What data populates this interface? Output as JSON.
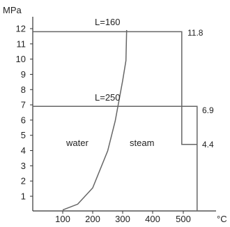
{
  "chart_data": {
    "type": "line",
    "title": "",
    "ylabel": "MPa",
    "xlabel": "°C",
    "xlim": [
      0,
      600
    ],
    "ylim": [
      0,
      12
    ],
    "x_ticks": [
      100,
      200,
      300,
      400,
      500
    ],
    "y_ticks": [
      1,
      2,
      3,
      4,
      5,
      6,
      7,
      8,
      9,
      10,
      11,
      12
    ],
    "grid": false,
    "saturation_curve": {
      "x": [
        100,
        150,
        200,
        250,
        275,
        300,
        311
      ],
      "y": [
        0.1,
        0.48,
        1.55,
        3.98,
        5.94,
        8.59,
        9.9
      ]
    },
    "series": [
      {
        "name": "L=160",
        "x": [
          0,
          495,
          495,
          545
        ],
        "y": [
          11.8,
          11.8,
          4.4,
          4.4
        ],
        "end_label": "11.8",
        "end_label_low": "4.4"
      },
      {
        "name": "L=250",
        "x": [
          0,
          545,
          545
        ],
        "y": [
          6.9,
          6.9,
          0
        ],
        "end_label": "6.9"
      }
    ],
    "region_labels": [
      "water",
      "steam"
    ],
    "colors": {
      "curve": "#666666",
      "lines": "#666666",
      "axis": "#333333",
      "text": "#222222"
    }
  }
}
